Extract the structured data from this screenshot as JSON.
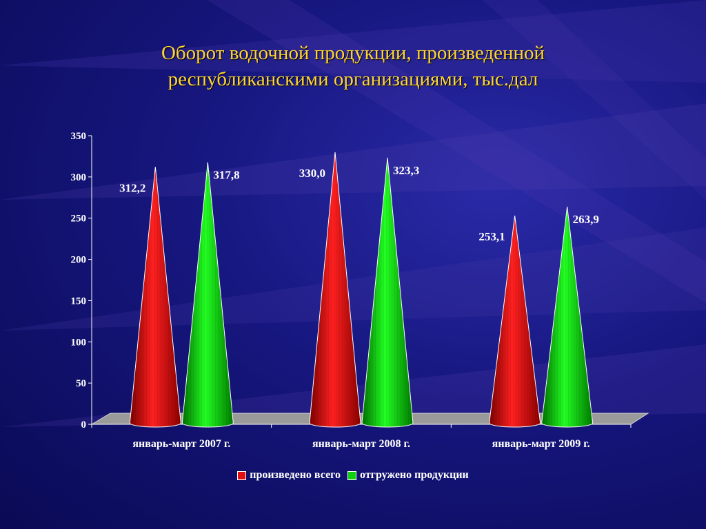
{
  "slide": {
    "title_line1": "Оборот водочной продукции, произведенной",
    "title_line2": "республиканскими организациями, тыс.дал"
  },
  "colors": {
    "title": "#ffd633",
    "series_red": "#e01010",
    "series_green": "#10d010",
    "text": "#ffffff"
  },
  "chart_data": {
    "type": "bar",
    "bar_shape": "cone",
    "categories": [
      "январь-март 2007 г.",
      "январь-март 2008 г.",
      "январь-март 2009 г."
    ],
    "series": [
      {
        "name": "произведено всего",
        "values": [
          312.2,
          330.0,
          253.1
        ],
        "labels": [
          "312,2",
          "330,0",
          "253,1"
        ]
      },
      {
        "name": "отгружено продукции",
        "values": [
          317.8,
          323.3,
          263.9
        ],
        "labels": [
          "317,8",
          "323,3",
          "263,9"
        ]
      }
    ],
    "ylim": [
      0,
      350
    ],
    "yticks": [
      0,
      50,
      100,
      150,
      200,
      250,
      300,
      350
    ],
    "legend": "bottom",
    "grid": false
  }
}
